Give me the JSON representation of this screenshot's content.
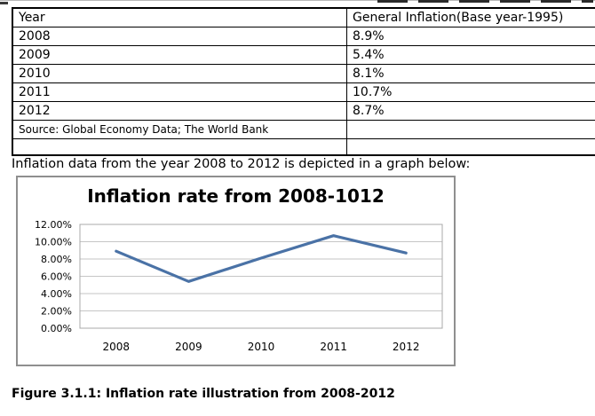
{
  "page": {
    "paragraph": "Inflation data from the year 2008 to 2012 is depicted in a graph below:",
    "caption": "Figure 3.1.1: Inflation rate illustration from 2008-2012"
  },
  "table": {
    "header": {
      "year": "Year",
      "inflation": "General Inflation(Base year-1995)"
    },
    "rows": [
      {
        "year": "2008",
        "value": "8.9%"
      },
      {
        "year": "2009",
        "value": "5.4%"
      },
      {
        "year": "2010",
        "value": "8.1%"
      },
      {
        "year": "2011",
        "value": "10.7%"
      },
      {
        "year": "2012",
        "value": "8.7%"
      }
    ],
    "source_note": "Source: Global Economy Data; The World Bank"
  },
  "chart_data": {
    "type": "line",
    "title": "Inflation rate from 2008-1012",
    "categories": [
      "2008",
      "2009",
      "2010",
      "2011",
      "2012"
    ],
    "series": [
      {
        "name": "General Inflation (Base year-1995)",
        "values": [
          8.9,
          5.4,
          8.1,
          10.7,
          8.7
        ]
      }
    ],
    "xlabel": "",
    "ylabel": "",
    "ylim": [
      0,
      12
    ],
    "ytick_step": 2,
    "ytick_labels": [
      "0.00%",
      "2.00%",
      "4.00%",
      "6.00%",
      "8.00%",
      "10.00%",
      "12.00%"
    ],
    "grid": true,
    "legend_position": "none",
    "line_color": "#4a72a6",
    "grid_color": "#c6c6c6",
    "axis_color": "#a8a8a8",
    "tick_text_color": "#000000"
  }
}
